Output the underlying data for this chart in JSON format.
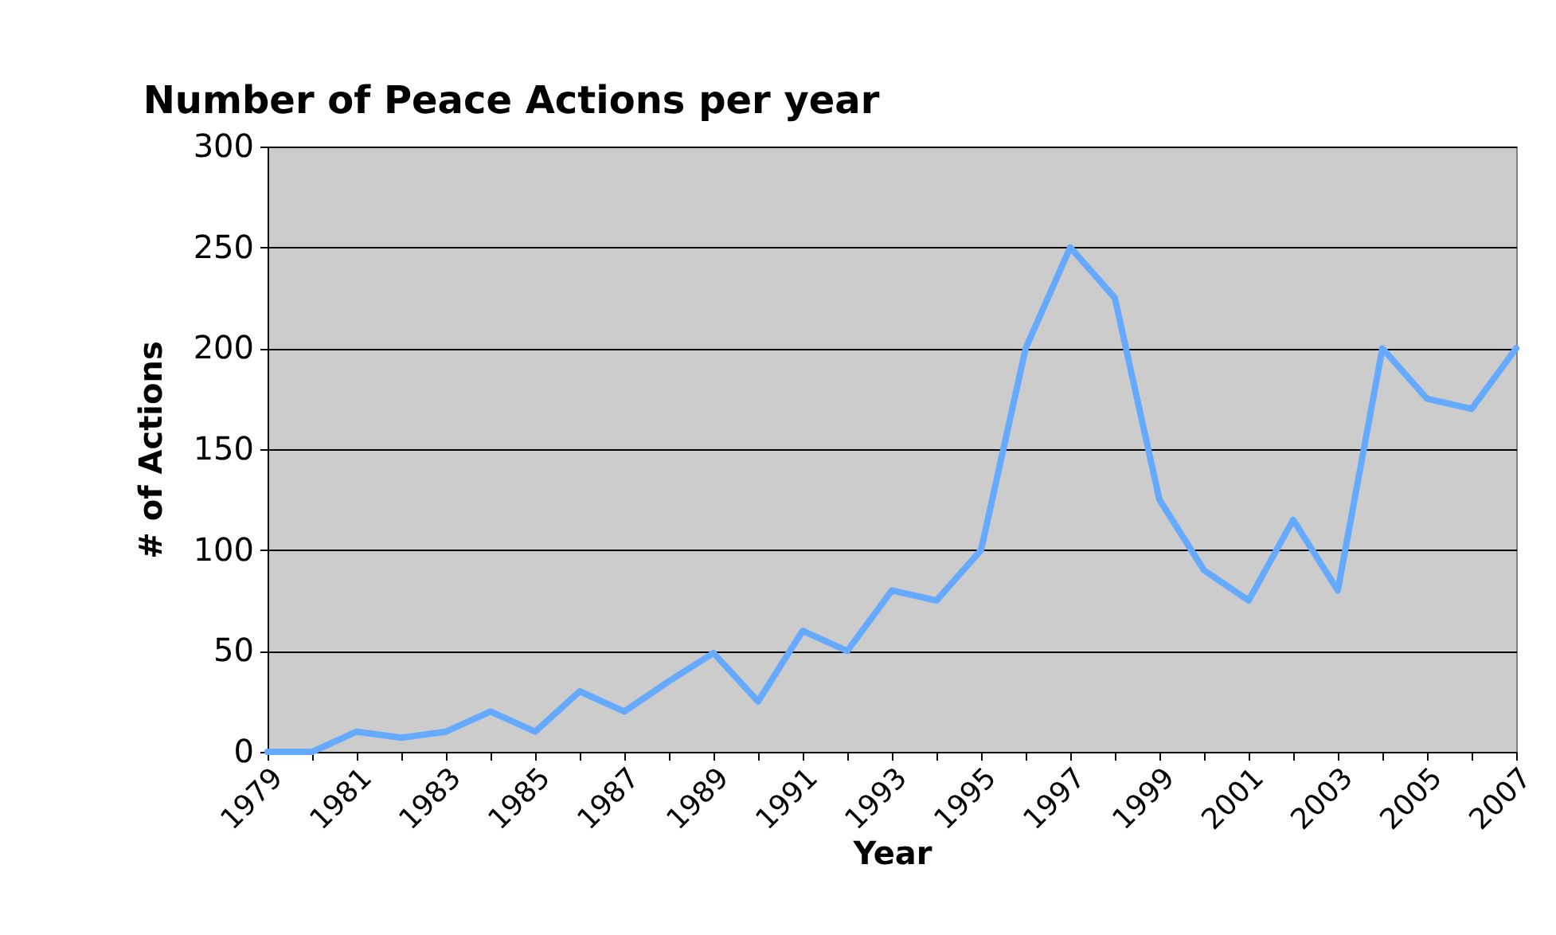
{
  "chart_data": {
    "type": "line",
    "title": "Number of Peace Actions per year",
    "xlabel": "Year",
    "ylabel": "# of Actions",
    "categories": [
      "1979",
      null,
      "1981",
      null,
      "1983",
      null,
      "1985",
      null,
      "1987",
      null,
      "1989",
      null,
      "1991",
      null,
      "1993",
      null,
      "1995",
      null,
      "1997",
      null,
      "1999",
      null,
      "2001",
      null,
      "2003",
      null,
      "2005",
      null,
      "2007"
    ],
    "series": [
      {
        "color": "#66aaff",
        "values": [
          0,
          0,
          10,
          7,
          10,
          20,
          10,
          30,
          20,
          35,
          49,
          25,
          60,
          50,
          80,
          75,
          100,
          200,
          250,
          225,
          125,
          90,
          75,
          115,
          80,
          200,
          175,
          170,
          200
        ]
      }
    ],
    "ylim": [
      0,
      300
    ],
    "yticks": [
      0,
      50,
      100,
      150,
      200,
      250,
      300
    ],
    "grid": "y"
  }
}
